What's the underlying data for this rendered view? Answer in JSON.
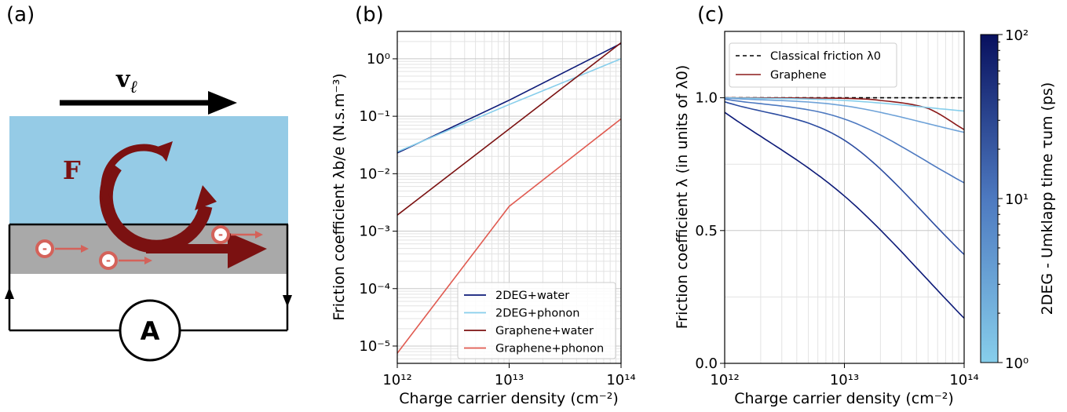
{
  "panel_labels": [
    "(a)",
    "(b)",
    "(c)"
  ],
  "schematic": {
    "velocity_label": "v",
    "velocity_subscript": "ℓ",
    "force_label": "F",
    "electron_symbol": "-",
    "ammeter_label": "A",
    "colors": {
      "water": "#95cbe6",
      "substrate": "#a9a9a9",
      "force": "#7b1111",
      "electron": "#d4625a",
      "arrow": "#000000"
    }
  },
  "chart_data": [
    {
      "type": "line",
      "panel": "(b)",
      "xscale": "log",
      "yscale": "log",
      "xlim": [
        1000000000000.0,
        100000000000000.0
      ],
      "ylim": [
        5e-06,
        3
      ],
      "xlabel": "Charge carrier density (cm⁻²)",
      "ylabel": "Friction coefficient λb/e (N.s.m⁻³)",
      "x_ticks": [
        "10¹²",
        "10¹³",
        "10¹⁴"
      ],
      "y_ticks": [
        "10⁻⁵",
        "10⁻⁴",
        "10⁻³",
        "10⁻²",
        "10⁻¹",
        "10⁰"
      ],
      "grid": true,
      "legend_position": "lower-right",
      "series": [
        {
          "name": "2DEG+water",
          "color": "#0c1a78",
          "x": [
            1000000000000.0,
            10000000000000.0,
            100000000000000.0
          ],
          "y": [
            0.023,
            0.19,
            1.85
          ]
        },
        {
          "name": "2DEG+phonon",
          "color": "#87ceeb",
          "x": [
            1000000000000.0,
            10000000000000.0,
            100000000000000.0
          ],
          "y": [
            0.024,
            0.16,
            1.0
          ]
        },
        {
          "name": "Graphene+water",
          "color": "#7b1111",
          "x": [
            1000000000000.0,
            10000000000000.0,
            100000000000000.0
          ],
          "y": [
            0.0019,
            0.06,
            1.9
          ]
        },
        {
          "name": "Graphene+phonon",
          "color": "#e05a50",
          "x": [
            1000000000000.0,
            10000000000000.0,
            100000000000000.0
          ],
          "y": [
            7.5e-06,
            0.0027,
            0.09
          ]
        }
      ]
    },
    {
      "type": "line",
      "panel": "(c)",
      "xscale": "log",
      "yscale": "linear",
      "xlim": [
        1000000000000.0,
        100000000000000.0
      ],
      "ylim": [
        0,
        1.25
      ],
      "xlabel": "Charge carrier density (cm⁻²)",
      "ylabel": "Friction coefficient λ (in units of λ0)",
      "x_ticks": [
        "10¹²",
        "10¹³",
        "10¹⁴"
      ],
      "y_ticks": [
        "0.0",
        "0.5",
        "1.0"
      ],
      "grid": true,
      "legend_position": "top-left",
      "legend": [
        "Classical friction λ0",
        "Graphene"
      ],
      "series": [
        {
          "name": "Classical friction λ0",
          "color": "#000000",
          "dashed": true,
          "x": [
            1000000000000.0,
            100000000000000.0
          ],
          "y": [
            1.0,
            1.0
          ]
        },
        {
          "name": "Graphene",
          "color": "#8b1a1a",
          "x": [
            1000000000000.0,
            10000000000000.0,
            20000000000000.0,
            50000000000000.0,
            100000000000000.0
          ],
          "y": [
            1.0,
            0.998,
            0.99,
            0.96,
            0.88
          ]
        },
        {
          "tau_um_ps": 1,
          "color": "#87ceeb",
          "x": [
            1000000000000.0,
            10000000000000.0,
            100000000000000.0
          ],
          "y": [
            1.0,
            0.99,
            0.95
          ]
        },
        {
          "tau_um_ps": 3,
          "color": "#6ea2d8",
          "x": [
            1000000000000.0,
            10000000000000.0,
            100000000000000.0
          ],
          "y": [
            0.999,
            0.97,
            0.87
          ]
        },
        {
          "tau_um_ps": 10,
          "color": "#4d79c0",
          "x": [
            1000000000000.0,
            10000000000000.0,
            100000000000000.0
          ],
          "y": [
            0.995,
            0.92,
            0.68
          ]
        },
        {
          "tau_um_ps": 30,
          "color": "#2c4ca0",
          "x": [
            1000000000000.0,
            10000000000000.0,
            100000000000000.0
          ],
          "y": [
            0.985,
            0.84,
            0.41
          ]
        },
        {
          "tau_um_ps": 100,
          "color": "#0c1a78",
          "x": [
            1000000000000.0,
            10000000000000.0,
            100000000000000.0
          ],
          "y": [
            0.945,
            0.63,
            0.17
          ]
        }
      ],
      "colorbar": {
        "label": "2DEG - Umklapp time τum (ps)",
        "scale": "log",
        "range": [
          1,
          100
        ],
        "ticks": [
          "10⁰",
          "10¹",
          "10²"
        ],
        "color_low": "#87ceeb",
        "color_high": "#08105e"
      }
    }
  ]
}
